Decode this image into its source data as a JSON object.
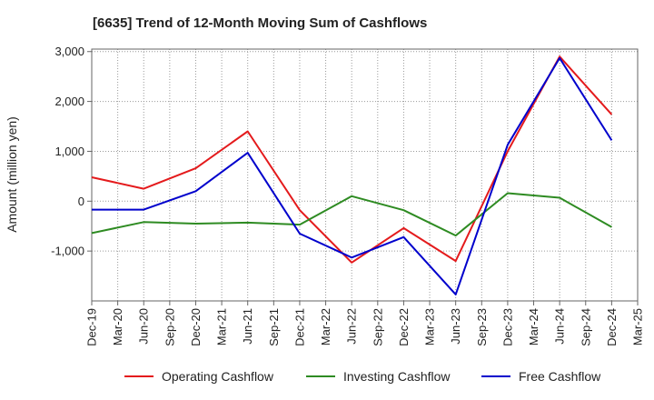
{
  "chart_data": {
    "type": "line",
    "title": "[6635]  Trend of 12-Month Moving Sum of Cashflows",
    "ylabel": "Amount (million yen)",
    "xlabel": "",
    "categories": [
      "Dec-19",
      "Mar-20",
      "Jun-20",
      "Sep-20",
      "Dec-20",
      "Mar-21",
      "Jun-21",
      "Sep-21",
      "Dec-21",
      "Mar-22",
      "Jun-22",
      "Sep-22",
      "Dec-22",
      "Mar-23",
      "Jun-23",
      "Sep-23",
      "Dec-23",
      "Mar-24",
      "Jun-24",
      "Sep-24",
      "Dec-24",
      "Mar-25"
    ],
    "ylim": [
      -2000,
      3050
    ],
    "yticks": [
      3000,
      2000,
      1000,
      0,
      -1000
    ],
    "ytick_labels": [
      "3,000",
      "2,000",
      "1,000",
      "0",
      "-1,000"
    ],
    "grid": true,
    "legend_position": "bottom",
    "series": [
      {
        "name": "Operating Cashflow",
        "color": "#e41a1c",
        "points": [
          [
            0,
            480
          ],
          [
            2,
            250
          ],
          [
            4,
            660
          ],
          [
            6,
            1400
          ],
          [
            8,
            -180
          ],
          [
            10,
            -1230
          ],
          [
            12,
            -540
          ],
          [
            14,
            -1200
          ],
          [
            16,
            1000
          ],
          [
            18,
            2900
          ],
          [
            20,
            1740
          ]
        ]
      },
      {
        "name": "Investing Cashflow",
        "color": "#2e8b22",
        "points": [
          [
            0,
            -640
          ],
          [
            2,
            -420
          ],
          [
            4,
            -450
          ],
          [
            6,
            -430
          ],
          [
            8,
            -470
          ],
          [
            10,
            100
          ],
          [
            12,
            -180
          ],
          [
            14,
            -690
          ],
          [
            16,
            160
          ],
          [
            18,
            70
          ],
          [
            20,
            -520
          ]
        ]
      },
      {
        "name": "Free Cashflow",
        "color": "#0000cc",
        "points": [
          [
            0,
            -170
          ],
          [
            2,
            -170
          ],
          [
            4,
            200
          ],
          [
            6,
            970
          ],
          [
            8,
            -650
          ],
          [
            10,
            -1130
          ],
          [
            12,
            -720
          ],
          [
            14,
            -1870
          ],
          [
            16,
            1130
          ],
          [
            18,
            2870
          ],
          [
            20,
            1220
          ]
        ]
      }
    ]
  }
}
